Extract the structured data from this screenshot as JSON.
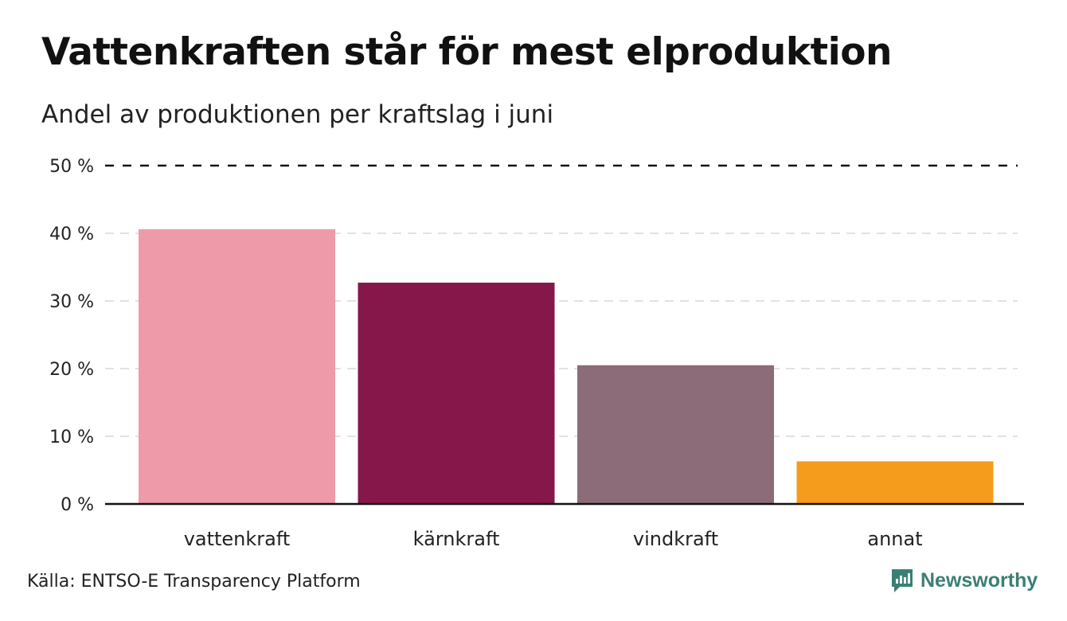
{
  "title": "Vattenkraften står för mest elproduktion",
  "subtitle": "Andel av produktionen per kraftslag i juni",
  "source": "Källa: ENTSO-E Transparency Platform",
  "brand": "Newsworthy",
  "brand_color": "#3a7f74",
  "chart_data": {
    "type": "bar",
    "title": "Vattenkraften står för mest elproduktion",
    "subtitle": "Andel av produktionen per kraftslag i juni",
    "xlabel": "",
    "ylabel": "",
    "categories": [
      "vattenkraft",
      "kärnkraft",
      "vindkraft",
      "annat"
    ],
    "values": [
      40.6,
      32.7,
      20.5,
      6.3
    ],
    "colors": [
      "#ef9aa8",
      "#86174a",
      "#8c6c78",
      "#f59c1c"
    ],
    "ylim": [
      0,
      50
    ],
    "yticks": [
      0,
      10,
      20,
      30,
      40,
      50
    ],
    "ytick_labels": [
      "0 %",
      "10 %",
      "20 %",
      "30 %",
      "40 %",
      "50 %"
    ],
    "grid": true,
    "legend": "none"
  }
}
